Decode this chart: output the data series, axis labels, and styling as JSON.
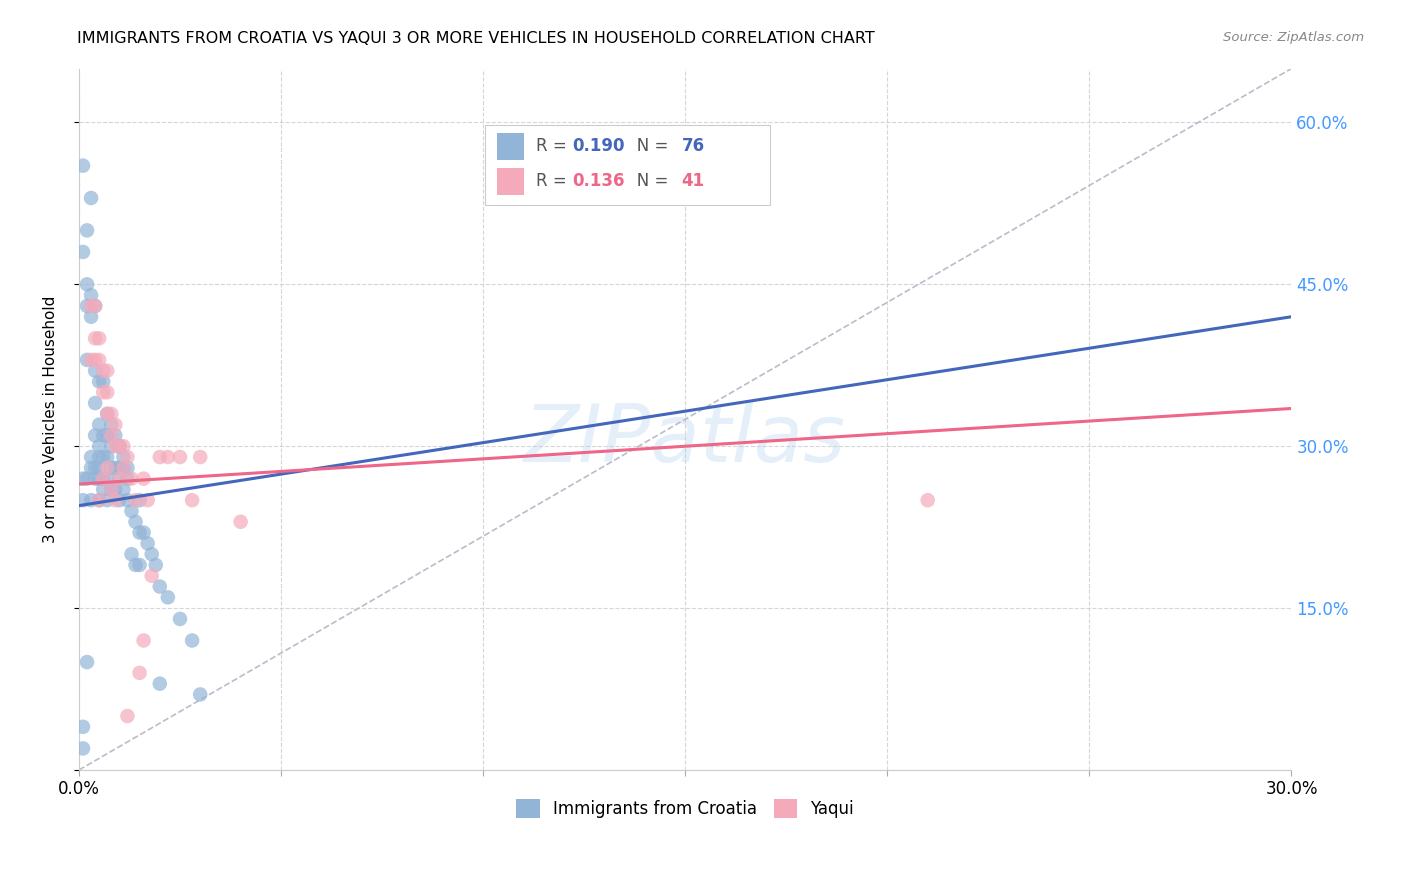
{
  "title": "IMMIGRANTS FROM CROATIA VS YAQUI 3 OR MORE VEHICLES IN HOUSEHOLD CORRELATION CHART",
  "source": "Source: ZipAtlas.com",
  "ylabel": "3 or more Vehicles in Household",
  "xlim": [
    0.0,
    0.3
  ],
  "ylim": [
    0.0,
    0.65
  ],
  "legend_blue_r": "0.190",
  "legend_blue_n": "76",
  "legend_pink_r": "0.136",
  "legend_pink_n": "41",
  "blue_color": "#92B4D7",
  "pink_color": "#F4AABB",
  "blue_line_color": "#4466BB",
  "pink_line_color": "#EE6688",
  "dashed_color": "#BBBBCC",
  "watermark": "ZIPatlas",
  "blue_line_x0": 0.0,
  "blue_line_y0": 0.245,
  "blue_line_x1": 0.3,
  "blue_line_y1": 0.42,
  "pink_line_x0": 0.0,
  "pink_line_y0": 0.265,
  "pink_line_x1": 0.3,
  "pink_line_y1": 0.335,
  "blue_x": [
    0.001,
    0.001,
    0.001,
    0.001,
    0.002,
    0.002,
    0.002,
    0.002,
    0.003,
    0.003,
    0.003,
    0.003,
    0.003,
    0.004,
    0.004,
    0.004,
    0.004,
    0.004,
    0.005,
    0.005,
    0.005,
    0.005,
    0.005,
    0.005,
    0.006,
    0.006,
    0.006,
    0.006,
    0.007,
    0.007,
    0.007,
    0.007,
    0.008,
    0.008,
    0.008,
    0.009,
    0.009,
    0.01,
    0.01,
    0.01,
    0.01,
    0.011,
    0.011,
    0.012,
    0.012,
    0.013,
    0.014,
    0.015,
    0.015,
    0.016,
    0.017,
    0.018,
    0.019,
    0.02,
    0.022,
    0.025,
    0.028,
    0.03,
    0.001,
    0.001,
    0.002,
    0.002,
    0.003,
    0.004,
    0.005,
    0.006,
    0.007,
    0.008,
    0.009,
    0.01,
    0.011,
    0.012,
    0.013,
    0.014,
    0.015,
    0.02
  ],
  "blue_y": [
    0.02,
    0.04,
    0.25,
    0.27,
    0.1,
    0.27,
    0.38,
    0.43,
    0.25,
    0.28,
    0.29,
    0.42,
    0.53,
    0.27,
    0.28,
    0.31,
    0.34,
    0.37,
    0.25,
    0.27,
    0.28,
    0.29,
    0.3,
    0.32,
    0.26,
    0.27,
    0.29,
    0.31,
    0.25,
    0.27,
    0.29,
    0.31,
    0.26,
    0.28,
    0.3,
    0.26,
    0.28,
    0.25,
    0.27,
    0.28,
    0.3,
    0.26,
    0.28,
    0.25,
    0.27,
    0.24,
    0.23,
    0.22,
    0.25,
    0.22,
    0.21,
    0.2,
    0.19,
    0.17,
    0.16,
    0.14,
    0.12,
    0.07,
    0.48,
    0.56,
    0.5,
    0.45,
    0.44,
    0.43,
    0.36,
    0.36,
    0.33,
    0.32,
    0.31,
    0.3,
    0.29,
    0.28,
    0.2,
    0.19,
    0.19,
    0.08
  ],
  "pink_x": [
    0.003,
    0.004,
    0.004,
    0.005,
    0.005,
    0.006,
    0.006,
    0.007,
    0.007,
    0.007,
    0.008,
    0.008,
    0.009,
    0.009,
    0.01,
    0.011,
    0.011,
    0.012,
    0.013,
    0.014,
    0.015,
    0.016,
    0.017,
    0.018,
    0.02,
    0.022,
    0.025,
    0.028,
    0.03,
    0.04,
    0.003,
    0.004,
    0.005,
    0.006,
    0.007,
    0.008,
    0.009,
    0.01,
    0.012,
    0.016,
    0.21
  ],
  "pink_y": [
    0.38,
    0.38,
    0.4,
    0.38,
    0.4,
    0.35,
    0.37,
    0.33,
    0.35,
    0.37,
    0.31,
    0.33,
    0.3,
    0.32,
    0.3,
    0.28,
    0.3,
    0.29,
    0.27,
    0.25,
    0.09,
    0.27,
    0.25,
    0.18,
    0.29,
    0.29,
    0.29,
    0.25,
    0.29,
    0.23,
    0.43,
    0.43,
    0.25,
    0.27,
    0.28,
    0.26,
    0.25,
    0.27,
    0.05,
    0.12,
    0.25
  ]
}
